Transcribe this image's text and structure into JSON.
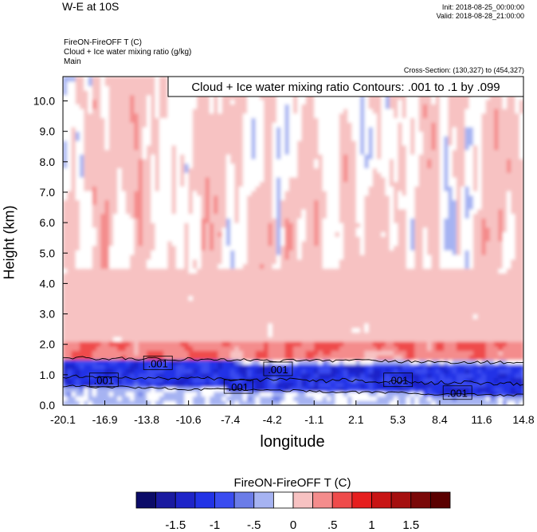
{
  "header": {
    "title": "W-E at 10S",
    "init": "Init: 2018-08-25_00:00:00",
    "valid": "Valid: 2018-08-28_21:00:00",
    "field_line1": "FireON-FireOFF T   (C)",
    "field_line2": "Cloud + Ice water mixing ratio   (g/kg)",
    "field_line3": "Main",
    "cross_section": "Cross-Section: (130,327) to (454,327)"
  },
  "chart_data": {
    "type": "heatmap",
    "xlabel": "longitude",
    "ylabel": "Height (km)",
    "x_ticks": [
      "-20.1",
      "-16.9",
      "-13.8",
      "-10.6",
      "-7.4",
      "-4.2",
      "-1.1",
      "2.1",
      "5.3",
      "8.4",
      "11.6",
      "14.8"
    ],
    "y_ticks": [
      "0.0",
      "1.0",
      "2.0",
      "3.0",
      "4.0",
      "5.0",
      "6.0",
      "7.0",
      "8.0",
      "9.0",
      "10.0"
    ],
    "xlim": [
      -20.1,
      14.8
    ],
    "ylim": [
      0.0,
      10.8
    ],
    "contour_title": "Cloud + Ice water mixing ratio Contours: .001 to .1 by .099",
    "contour_labels": [
      {
        "text": ".001",
        "x": -17.0,
        "y": 0.82
      },
      {
        "text": ".001",
        "x": -12.9,
        "y": 1.38
      },
      {
        "text": ".001",
        "x": -6.8,
        "y": 0.6
      },
      {
        "text": ".001",
        "x": -3.8,
        "y": 1.18
      },
      {
        "text": ".001",
        "x": 5.3,
        "y": 0.82
      },
      {
        "text": ".001",
        "x": 9.8,
        "y": 0.4
      }
    ],
    "colorbar": {
      "title": "FireON-FireOFF T  (C)",
      "levels": [
        -1.75,
        -1.5,
        -1.25,
        -1,
        -0.75,
        -0.5,
        -0.25,
        0,
        0.25,
        0.5,
        0.75,
        1,
        1.25,
        1.5,
        1.75
      ],
      "colors": [
        "#0b0b68",
        "#1a1aa0",
        "#1e24c8",
        "#2233e6",
        "#3a4cf0",
        "#6b7ce8",
        "#a6b3f2",
        "#ffffff",
        "#f7c2c2",
        "#f48c8c",
        "#ef4b4b",
        "#e61e1e",
        "#c81414",
        "#a50f0f",
        "#7a0808",
        "#5a0000"
      ],
      "tick_labels": [
        "-1.5",
        "-1",
        "-.5",
        "0",
        ".5",
        "1",
        "1.5"
      ],
      "tick_values": [
        -1.5,
        -1,
        -0.5,
        0,
        0.5,
        1,
        1.5
      ]
    },
    "field_pattern": {
      "upper_background": "alternating weak positive and negative anomalies (-0.25 to 0.25 C)",
      "mid_layer_km": [
        1.5,
        4.5
      ],
      "mid_layer_value": 0.1,
      "cloud_layer_km": [
        0.6,
        1.5
      ],
      "cloud_layer_value": -1.3,
      "warm_band_km": [
        1.5,
        2.1
      ],
      "warm_band_value": 0.6
    },
    "grid": false
  }
}
